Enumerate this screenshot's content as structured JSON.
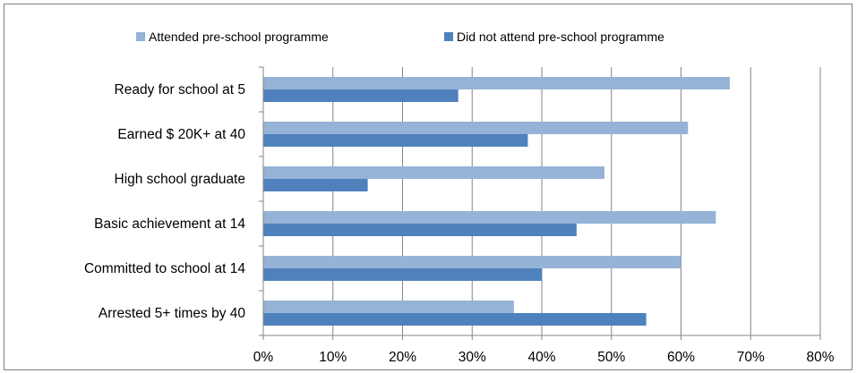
{
  "chart_data": {
    "type": "bar",
    "orientation": "horizontal",
    "categories": [
      "Ready for school at 5",
      "Earned $ 20K+ at 40",
      "High school graduate",
      "Basic achievement at 14",
      "Committed to school at 14",
      "Arrested 5+ times by 40"
    ],
    "series": [
      {
        "name": "Attended pre-school programme",
        "color": "#95b3d7",
        "values": [
          67,
          61,
          49,
          65,
          60,
          36
        ]
      },
      {
        "name": "Did not attend pre-school programme",
        "color": "#4f81bd",
        "values": [
          28,
          38,
          15,
          45,
          40,
          55
        ]
      }
    ],
    "xlim": [
      0,
      80
    ],
    "x_ticks": [
      "0%",
      "10%",
      "20%",
      "30%",
      "40%",
      "50%",
      "60%",
      "70%",
      "80%"
    ],
    "grid": true,
    "legend_position": "top"
  }
}
